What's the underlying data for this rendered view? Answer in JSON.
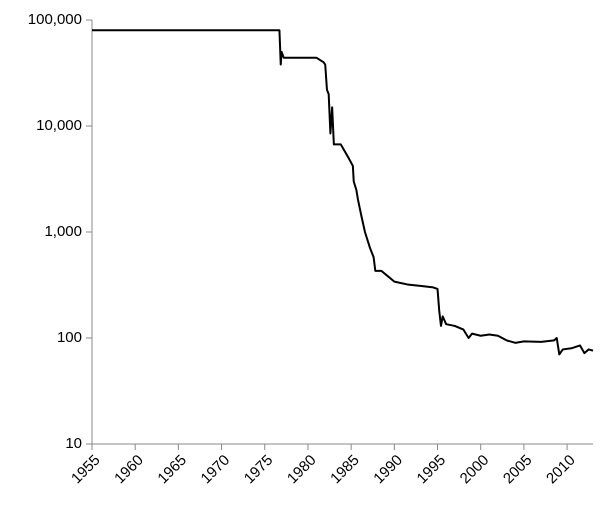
{
  "chart_data": {
    "type": "line",
    "log_scale_y": true,
    "color": "#000000",
    "x": [
      1955,
      1976.7,
      1976.85,
      1976.95,
      1977.2,
      1981,
      1981.8,
      1982,
      1982.2,
      1982.4,
      1982.6,
      1982.8,
      1983,
      1983.8,
      1984.7,
      1985.2,
      1985.3,
      1985.6,
      1985.8,
      1986.2,
      1986.6,
      1987.2,
      1987.6,
      1987.8,
      1988.5,
      1989.3,
      1990,
      1991.5,
      1993,
      1994.5,
      1995,
      1995.2,
      1995.4,
      1995.6,
      1996,
      1997,
      1998,
      1998.6,
      1999,
      2000,
      2001,
      2002,
      2003,
      2004,
      2005,
      2007,
      2008.5,
      2008.8,
      2009.1,
      2009.5,
      2010.5,
      2011.5,
      2012,
      2012.5,
      2013
    ],
    "values": [
      80000,
      80000,
      38000,
      50000,
      44000,
      44000,
      40000,
      38000,
      22000,
      20000,
      8500,
      15000,
      6700,
      6700,
      5000,
      4200,
      3000,
      2500,
      2000,
      1400,
      1000,
      700,
      580,
      430,
      430,
      380,
      340,
      320,
      310,
      300,
      290,
      180,
      130,
      160,
      135,
      130,
      120,
      100,
      110,
      105,
      108,
      105,
      95,
      90,
      93,
      92,
      95,
      100,
      70,
      78,
      80,
      85,
      72,
      78,
      76
    ],
    "xlim": [
      1955,
      2013
    ],
    "xticks": [
      1955,
      1960,
      1965,
      1970,
      1975,
      1980,
      1985,
      1990,
      1995,
      2000,
      2005,
      2010
    ],
    "ylim": [
      10,
      100000
    ],
    "yticks": [
      10,
      100,
      {
        "value": 1000,
        "label": "1,000"
      },
      {
        "value": 10000,
        "label": "10,000"
      },
      {
        "value": 100000,
        "label": "100,000"
      }
    ]
  }
}
